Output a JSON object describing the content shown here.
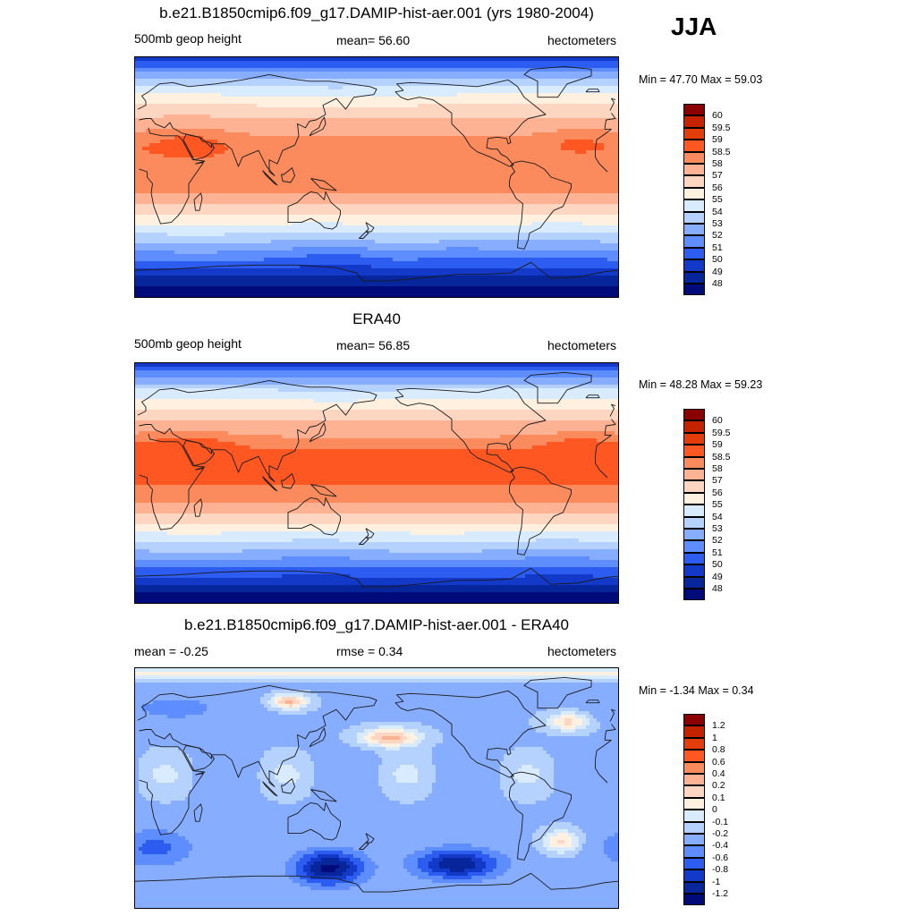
{
  "season": "JJA",
  "panels": [
    {
      "title": "b.e21.B1850cmip6.f09_g17.DAMIP-hist-aer.001 (yrs 1980-2004)",
      "left_label": "500mb geop height",
      "center_label": "mean=  56.60",
      "right_label": "hectometers",
      "minmax": "Min =  47.70 Max =  59.03",
      "field": "model",
      "colorbar": {
        "labels": [
          "60",
          "59.5",
          "59",
          "58.5",
          "58",
          "57",
          "56",
          "55",
          "54",
          "53",
          "52",
          "51",
          "50",
          "49",
          "48"
        ],
        "colors": [
          "#8b0000",
          "#c52200",
          "#e43d0c",
          "#ff5721",
          "#fb8a5c",
          "#fdb293",
          "#fdd6c2",
          "#fff0e0",
          "#d9ebff",
          "#b5d2ff",
          "#86adff",
          "#5d8dff",
          "#2d5cf0",
          "#1239c8",
          "#07269b",
          "#000b7a"
        ]
      }
    },
    {
      "title": "ERA40",
      "left_label": "500mb geop height",
      "center_label": "mean=  56.85",
      "right_label": "hectometers",
      "minmax": "Min =  48.28 Max =  59.23",
      "field": "obs",
      "colorbar": {
        "labels": [
          "60",
          "59.5",
          "59",
          "58.5",
          "58",
          "57",
          "56",
          "55",
          "54",
          "53",
          "52",
          "51",
          "50",
          "49",
          "48"
        ],
        "colors": [
          "#8b0000",
          "#c52200",
          "#e43d0c",
          "#ff5721",
          "#fb8a5c",
          "#fdb293",
          "#fdd6c2",
          "#fff0e0",
          "#d9ebff",
          "#b5d2ff",
          "#86adff",
          "#5d8dff",
          "#2d5cf0",
          "#1239c8",
          "#07269b",
          "#000b7a"
        ]
      }
    },
    {
      "title": "b.e21.B1850cmip6.f09_g17.DAMIP-hist-aer.001 - ERA40",
      "left_label": "mean =  -0.25",
      "center_label": "rmse =   0.34",
      "right_label": "hectometers",
      "minmax": "Min =  -1.34 Max =   0.34",
      "field": "diff",
      "colorbar": {
        "labels": [
          "1.2",
          "1",
          "0.8",
          "0.6",
          "0.4",
          "0.2",
          "0.1",
          "0",
          "-0.1",
          "-0.2",
          "-0.4",
          "-0.6",
          "-0.8",
          "-1",
          "-1.2"
        ],
        "colors": [
          "#8b0000",
          "#c52200",
          "#e43d0c",
          "#ff5721",
          "#fb8a5c",
          "#fdb293",
          "#fdd6c2",
          "#fff0e0",
          "#d9ebff",
          "#b5d2ff",
          "#86adff",
          "#5d8dff",
          "#2d5cf0",
          "#1239c8",
          "#07269b",
          "#000b7a"
        ]
      }
    }
  ]
}
